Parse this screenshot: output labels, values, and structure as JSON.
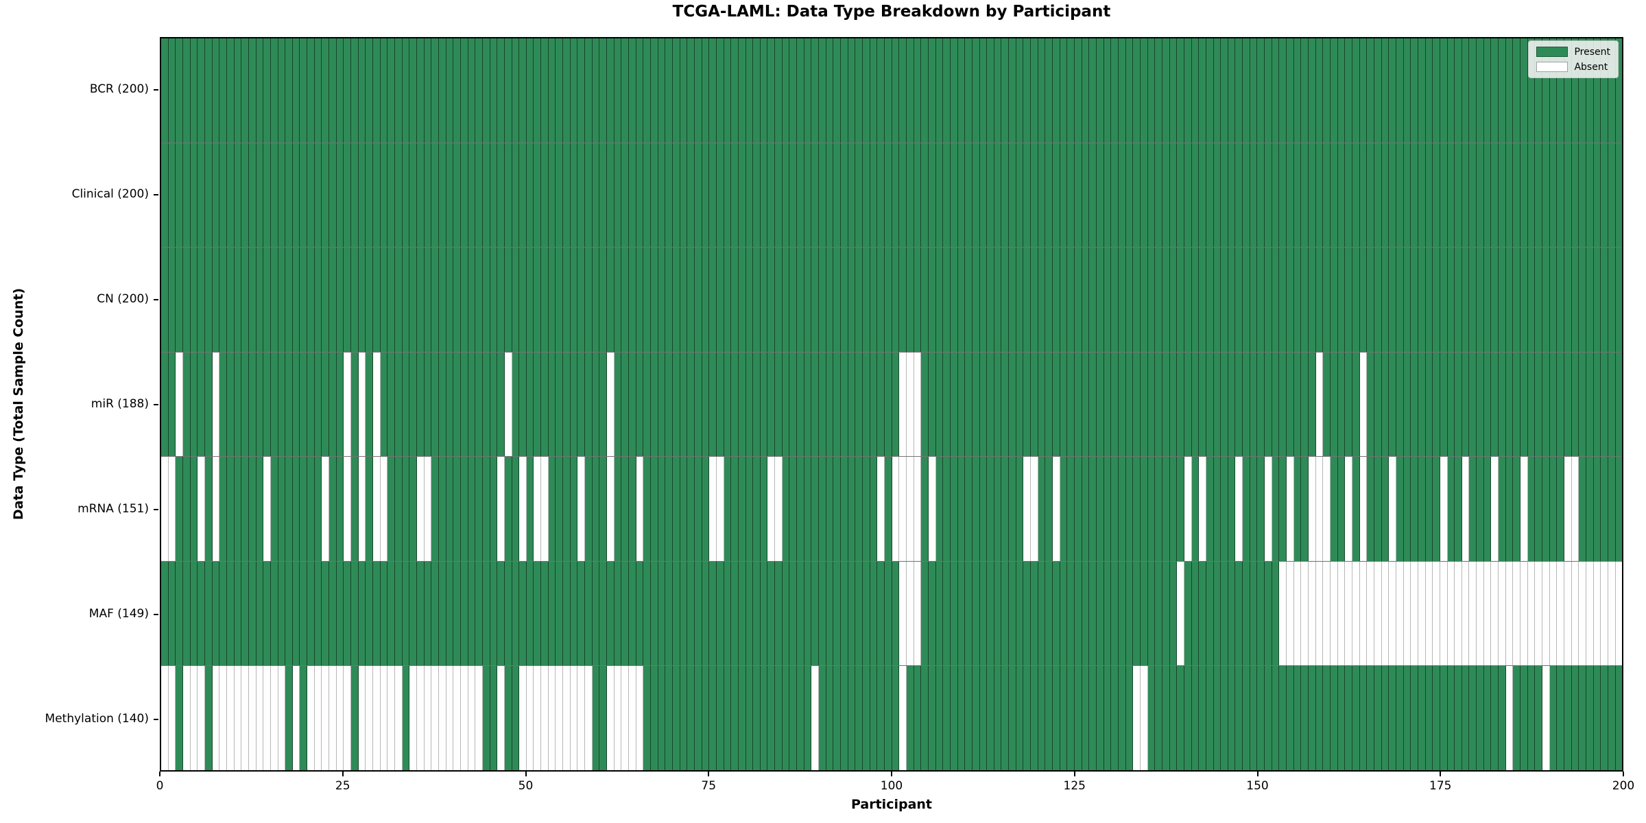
{
  "figure": {
    "background": "#ffffff"
  },
  "chart_data": {
    "type": "heatmap",
    "title": "TCGA-LAML: Data Type Breakdown by Participant",
    "xlabel": "Participant",
    "ylabel": "Data Type (Total Sample Count)",
    "x_range": [
      0,
      200
    ],
    "x_ticks": [
      0,
      25,
      50,
      75,
      100,
      125,
      150,
      175,
      200
    ],
    "n_participants": 200,
    "legend_position": "upper right",
    "grid": "per-cell edges, row divider lines",
    "colors": {
      "present": "#2e8b57",
      "absent": "#fefefe",
      "cell_edge_on_green": "rgba(0,0,0,0.5)",
      "cell_edge_on_white": "rgba(0,0,0,0.28)",
      "row_divider": "rgba(0,0,0,0.55)",
      "plot_border": "#000000",
      "legend_bg": "#f2f2f2",
      "legend_border": "#c9c9c9"
    },
    "legend": [
      {
        "label": "Present",
        "color": "#2e8b57"
      },
      {
        "label": "Absent",
        "color": "#ffffff"
      }
    ],
    "rows": [
      {
        "name": "bcr",
        "label": "BCR (200)",
        "present_count": 200,
        "absent_participants": []
      },
      {
        "name": "clinical",
        "label": "Clinical (200)",
        "present_count": 200,
        "absent_participants": []
      },
      {
        "name": "cn",
        "label": "CN (200)",
        "present_count": 200,
        "absent_participants": []
      },
      {
        "name": "mir",
        "label": "miR (188)",
        "present_count": 188,
        "absent_participants": [
          2,
          7,
          25,
          27,
          29,
          47,
          61,
          101,
          102,
          103,
          158,
          164
        ]
      },
      {
        "name": "mrna",
        "label": "mRNA (151)",
        "present_count": 151,
        "absent_participants": [
          0,
          1,
          5,
          7,
          14,
          22,
          25,
          27,
          29,
          30,
          35,
          36,
          46,
          49,
          51,
          52,
          57,
          61,
          65,
          75,
          76,
          83,
          84,
          98,
          100,
          101,
          102,
          103,
          105,
          118,
          119,
          122,
          140,
          142,
          147,
          151,
          154,
          157,
          158,
          159,
          162,
          164,
          168,
          175,
          178,
          182,
          186,
          192,
          193
        ]
      },
      {
        "name": "maf",
        "label": "MAF (149)",
        "present_count": 149,
        "absent_participants": [
          101,
          102,
          103,
          139,
          153,
          154,
          155,
          156,
          157,
          158,
          159,
          160,
          161,
          162,
          163,
          164,
          165,
          166,
          167,
          168,
          169,
          170,
          171,
          172,
          173,
          174,
          175,
          176,
          177,
          178,
          179,
          180,
          181,
          182,
          183,
          184,
          185,
          186,
          187,
          188,
          189,
          190,
          191,
          192,
          193,
          194,
          195,
          196,
          197,
          198,
          199
        ]
      },
      {
        "name": "methylation",
        "label": "Methylation (140)",
        "present_count": 140,
        "absent_participants": [
          0,
          1,
          3,
          4,
          5,
          7,
          8,
          9,
          10,
          11,
          12,
          13,
          14,
          15,
          16,
          18,
          20,
          21,
          22,
          23,
          24,
          25,
          27,
          28,
          29,
          30,
          31,
          32,
          34,
          35,
          36,
          37,
          38,
          39,
          40,
          41,
          42,
          43,
          46,
          49,
          50,
          51,
          52,
          53,
          54,
          55,
          56,
          57,
          58,
          61,
          62,
          63,
          64,
          65,
          89,
          101,
          133,
          134,
          184,
          189
        ]
      }
    ]
  }
}
